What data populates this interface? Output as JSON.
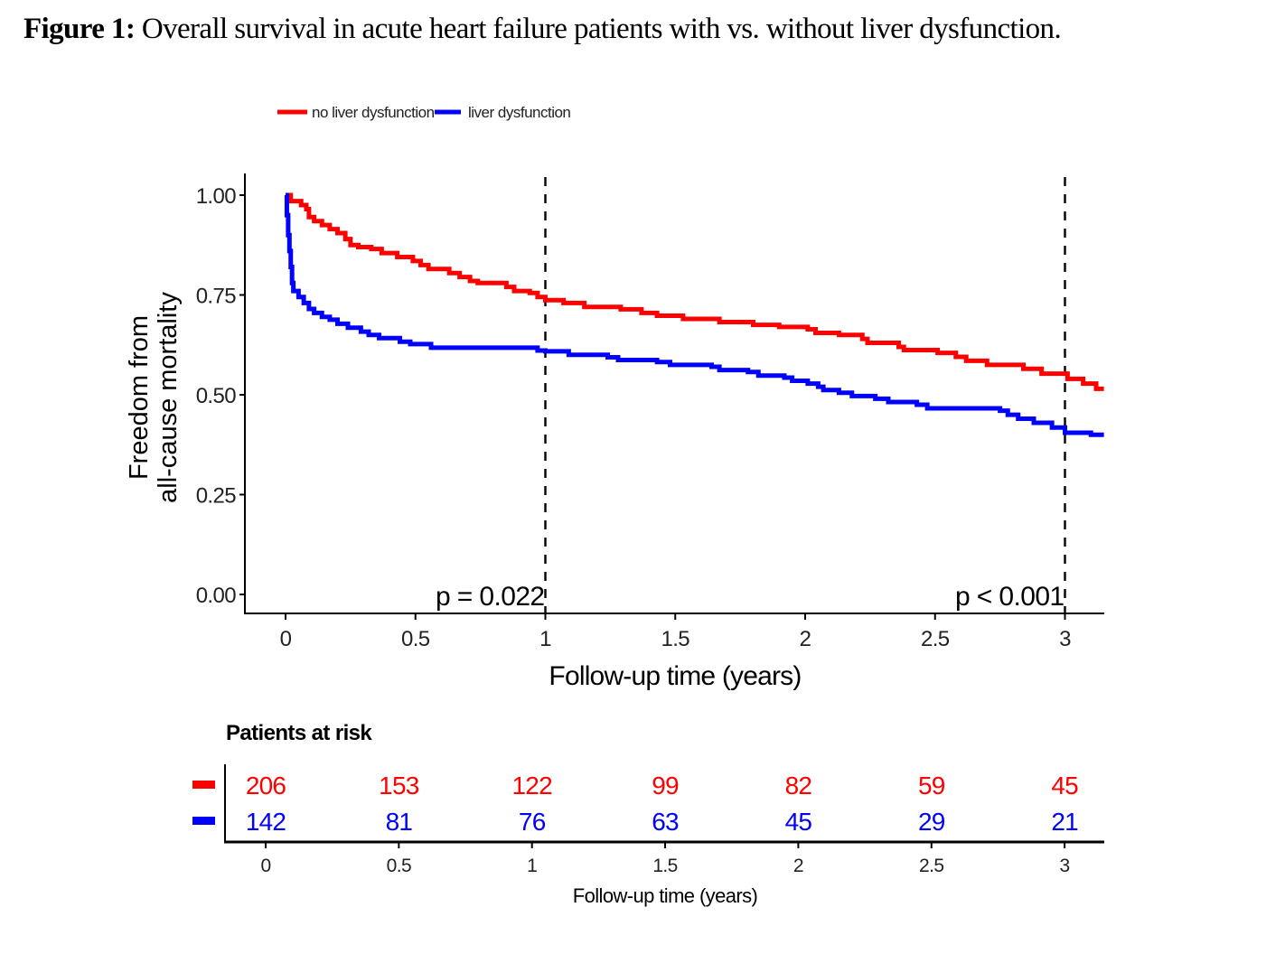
{
  "caption": {
    "label": "Figure 1:",
    "text": " Overall survival in acute heart failure patients with vs. without liver dysfunction."
  },
  "chart_data": {
    "type": "line",
    "subtype": "kaplan-meier-step",
    "title": "",
    "xlabel": "Follow-up time (years)",
    "ylabel_lines": [
      "Freedom from",
      "all-cause mortality"
    ],
    "xlim": [
      -0.15,
      3.15
    ],
    "ylim": [
      -0.04,
      1.04
    ],
    "x_ticks": [
      0,
      0.5,
      1,
      1.5,
      2,
      2.5,
      3
    ],
    "x_tick_labels": [
      "0",
      "0.5",
      "1",
      "1.5",
      "2",
      "2.5",
      "3"
    ],
    "y_ticks": [
      0,
      0.25,
      0.5,
      0.75,
      1.0
    ],
    "y_tick_labels": [
      "0.00",
      "0.25",
      "0.50",
      "0.75",
      "1.00"
    ],
    "grid": false,
    "legend": {
      "position": "top",
      "entries": [
        "no liver dysfunction",
        "liver dysfunction"
      ]
    },
    "series": [
      {
        "name": "no liver dysfunction",
        "color": "#ff0000",
        "steps": [
          [
            0,
            1.0
          ],
          [
            0.02,
            0.985
          ],
          [
            0.06,
            0.975
          ],
          [
            0.08,
            0.965
          ],
          [
            0.09,
            0.945
          ],
          [
            0.11,
            0.935
          ],
          [
            0.14,
            0.925
          ],
          [
            0.17,
            0.915
          ],
          [
            0.2,
            0.905
          ],
          [
            0.23,
            0.89
          ],
          [
            0.25,
            0.875
          ],
          [
            0.28,
            0.87
          ],
          [
            0.33,
            0.865
          ],
          [
            0.37,
            0.855
          ],
          [
            0.43,
            0.845
          ],
          [
            0.49,
            0.835
          ],
          [
            0.52,
            0.825
          ],
          [
            0.55,
            0.815
          ],
          [
            0.63,
            0.805
          ],
          [
            0.67,
            0.795
          ],
          [
            0.71,
            0.785
          ],
          [
            0.74,
            0.78
          ],
          [
            0.85,
            0.77
          ],
          [
            0.88,
            0.76
          ],
          [
            0.94,
            0.755
          ],
          [
            0.97,
            0.745
          ],
          [
            1.0,
            0.737
          ],
          [
            1.07,
            0.73
          ],
          [
            1.15,
            0.72
          ],
          [
            1.29,
            0.714
          ],
          [
            1.37,
            0.705
          ],
          [
            1.43,
            0.698
          ],
          [
            1.53,
            0.69
          ],
          [
            1.67,
            0.682
          ],
          [
            1.8,
            0.675
          ],
          [
            1.9,
            0.67
          ],
          [
            2.01,
            0.664
          ],
          [
            2.04,
            0.655
          ],
          [
            2.13,
            0.65
          ],
          [
            2.22,
            0.64
          ],
          [
            2.24,
            0.63
          ],
          [
            2.36,
            0.62
          ],
          [
            2.38,
            0.612
          ],
          [
            2.51,
            0.605
          ],
          [
            2.58,
            0.595
          ],
          [
            2.62,
            0.585
          ],
          [
            2.7,
            0.575
          ],
          [
            2.84,
            0.565
          ],
          [
            2.91,
            0.553
          ],
          [
            3.01,
            0.54
          ],
          [
            3.07,
            0.528
          ],
          [
            3.12,
            0.515
          ],
          [
            3.15,
            0.515
          ]
        ]
      },
      {
        "name": "liver dysfunction",
        "color": "#0000ff",
        "steps": [
          [
            0,
            1.0
          ],
          [
            0.005,
            0.95
          ],
          [
            0.01,
            0.9
          ],
          [
            0.015,
            0.86
          ],
          [
            0.02,
            0.82
          ],
          [
            0.025,
            0.78
          ],
          [
            0.03,
            0.76
          ],
          [
            0.05,
            0.745
          ],
          [
            0.07,
            0.73
          ],
          [
            0.09,
            0.715
          ],
          [
            0.11,
            0.705
          ],
          [
            0.14,
            0.695
          ],
          [
            0.17,
            0.688
          ],
          [
            0.2,
            0.678
          ],
          [
            0.24,
            0.668
          ],
          [
            0.29,
            0.658
          ],
          [
            0.32,
            0.65
          ],
          [
            0.36,
            0.642
          ],
          [
            0.44,
            0.633
          ],
          [
            0.48,
            0.627
          ],
          [
            0.56,
            0.618
          ],
          [
            0.97,
            0.611
          ],
          [
            1.0,
            0.609
          ],
          [
            1.09,
            0.6
          ],
          [
            1.24,
            0.594
          ],
          [
            1.28,
            0.587
          ],
          [
            1.43,
            0.582
          ],
          [
            1.48,
            0.575
          ],
          [
            1.64,
            0.57
          ],
          [
            1.67,
            0.562
          ],
          [
            1.78,
            0.557
          ],
          [
            1.82,
            0.548
          ],
          [
            1.92,
            0.543
          ],
          [
            1.95,
            0.535
          ],
          [
            2.01,
            0.528
          ],
          [
            2.05,
            0.52
          ],
          [
            2.07,
            0.512
          ],
          [
            2.13,
            0.505
          ],
          [
            2.18,
            0.497
          ],
          [
            2.27,
            0.49
          ],
          [
            2.32,
            0.482
          ],
          [
            2.43,
            0.475
          ],
          [
            2.47,
            0.466
          ],
          [
            2.75,
            0.46
          ],
          [
            2.78,
            0.45
          ],
          [
            2.82,
            0.44
          ],
          [
            2.88,
            0.43
          ],
          [
            2.95,
            0.418
          ],
          [
            3.0,
            0.405
          ],
          [
            3.1,
            0.4
          ],
          [
            3.15,
            0.4
          ]
        ]
      }
    ],
    "reference_lines": [
      {
        "x": 1,
        "style": "dashed",
        "annotation": "p = 0.022"
      },
      {
        "x": 3,
        "style": "dashed",
        "annotation": "p < 0.001"
      }
    ],
    "risk_table": {
      "title": "Patients at risk",
      "xlabel": "Follow-up time (years)",
      "times": [
        0,
        0.5,
        1,
        1.5,
        2,
        2.5,
        3
      ],
      "time_labels": [
        "0",
        "0.5",
        "1",
        "1.5",
        "2",
        "2.5",
        "3"
      ],
      "rows": [
        {
          "name": "no liver dysfunction",
          "color": "#ff0000",
          "values": [
            "206",
            "153",
            "122",
            "99",
            "82",
            "59",
            "45"
          ]
        },
        {
          "name": "liver dysfunction",
          "color": "#0000ff",
          "values": [
            "142",
            "81",
            "76",
            "63",
            "45",
            "29",
            "21"
          ]
        }
      ]
    }
  }
}
